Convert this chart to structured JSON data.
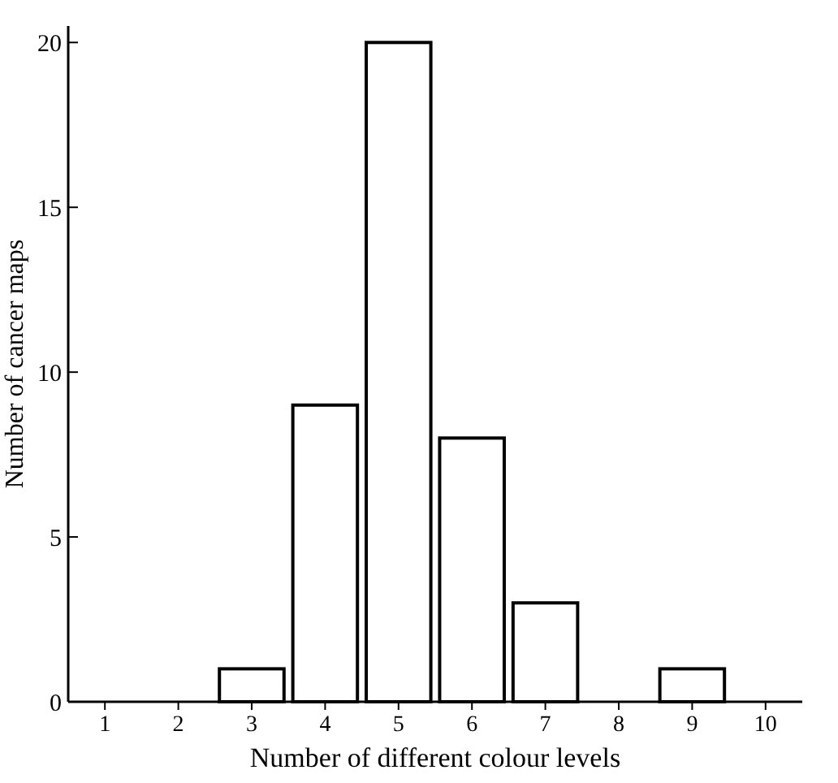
{
  "chart_data": {
    "type": "bar",
    "xlabel": "Number of different colour levels",
    "ylabel": "Number of cancer maps",
    "categories": [
      "1",
      "2",
      "3",
      "4",
      "5",
      "6",
      "7",
      "8",
      "9",
      "10"
    ],
    "values": [
      0,
      0,
      1,
      9,
      20,
      8,
      3,
      0,
      1,
      0
    ],
    "color": "#ffffff",
    "ylim": [
      0,
      20.5
    ],
    "yticks": [
      0,
      5,
      10,
      15,
      20
    ],
    "grid": false
  }
}
